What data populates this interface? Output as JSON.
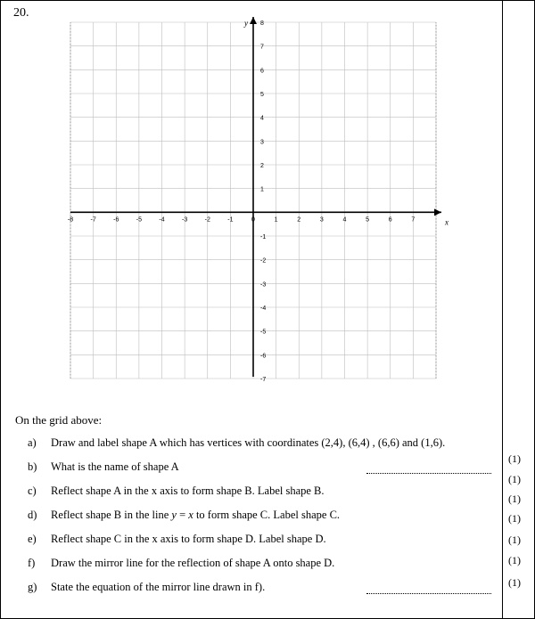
{
  "question_number": "20.",
  "grid": {
    "x_axis_label": "x",
    "y_axis_label": "y",
    "xmin": -8,
    "xmax": 8,
    "ymin": -7,
    "ymax": 8,
    "tick_fontsize": 7,
    "axis_label_fontsize": 9,
    "grid_color": "#bdbdbd",
    "axis_color": "#000000",
    "background": "#ffffff",
    "x_ticks": [
      -8,
      -7,
      -6,
      -5,
      -4,
      -3,
      -2,
      -1,
      0,
      1,
      2,
      3,
      4,
      5,
      6,
      7
    ],
    "y_ticks": [
      -7,
      -6,
      -5,
      -4,
      -3,
      -2,
      -1,
      1,
      2,
      3,
      4,
      5,
      6,
      7,
      8
    ]
  },
  "instruction": "On the grid above:",
  "parts": [
    {
      "label": "a)",
      "text_pre": "Draw and label shape A which has vertices with coordinates (2,4),  (6,4) , (6,6) and (1,6).",
      "mark": "(1)",
      "answer_line": false
    },
    {
      "label": "b)",
      "text_pre": "What is the name of shape A",
      "mark": "(1)",
      "answer_line": true
    },
    {
      "label": "c)",
      "text_pre": "Reflect shape A in the x axis to form shape B. Label shape B.",
      "mark": "(1)",
      "answer_line": false
    },
    {
      "label": "d)",
      "text_html": "Reflect shape B in the line <span class=\"italic\">y</span> = <span class=\"italic\">x</span> to form shape C. Label shape C.",
      "mark": "(1)",
      "answer_line": false
    },
    {
      "label": "e)",
      "text_pre": "Reflect shape C in the x axis to form shape D. Label shape D.",
      "mark": "(1)",
      "answer_line": false
    },
    {
      "label": "f)",
      "text_pre": "Draw the mirror line for the reflection of shape A onto shape D.",
      "mark": "(1)",
      "answer_line": false
    },
    {
      "label": "g)",
      "text_pre": "State the equation of the mirror line drawn in f).",
      "mark": "(1)",
      "answer_line": true
    }
  ],
  "mark_positions": [
    507,
    530,
    552,
    574,
    598,
    621,
    646,
    671
  ]
}
